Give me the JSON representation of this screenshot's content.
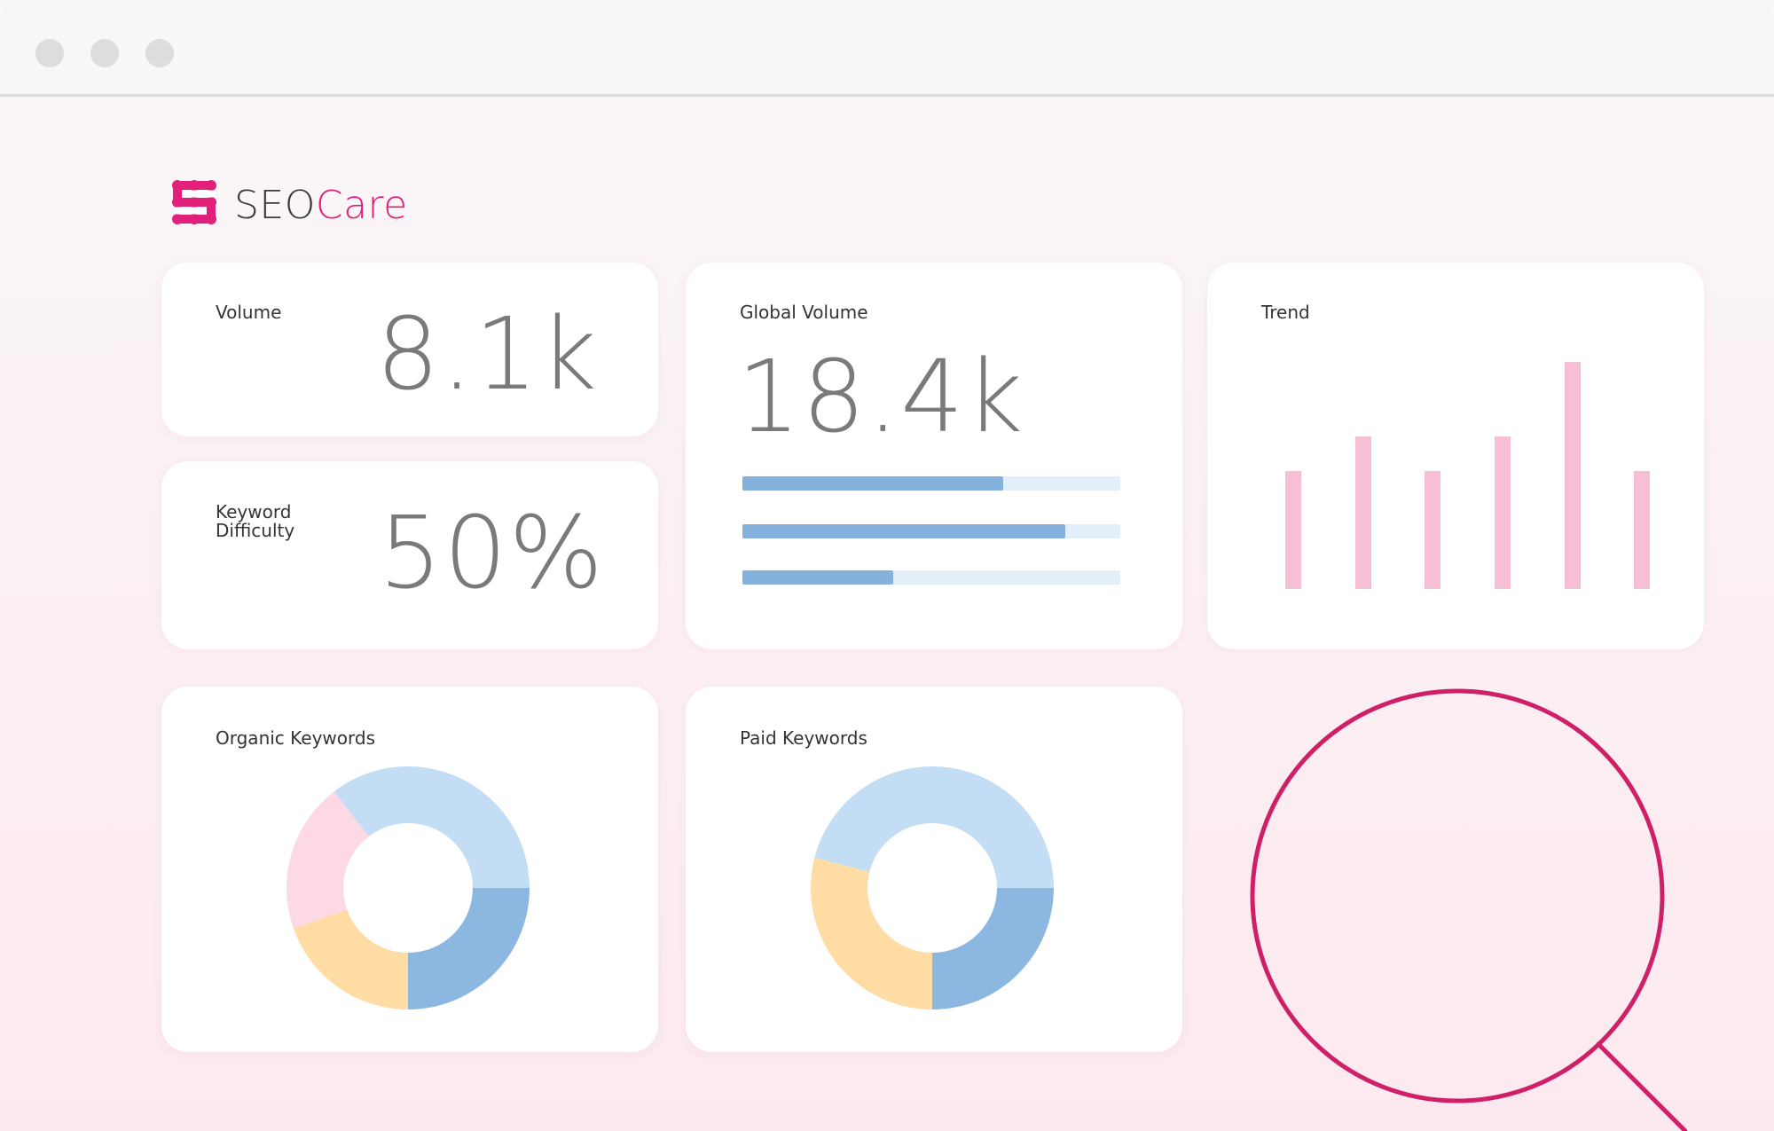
{
  "window": {
    "controls": [
      "close-dot",
      "minimize-dot",
      "maximize-dot"
    ]
  },
  "brand": {
    "name_part1": "SEO",
    "name_part2": "Care",
    "accent_color": "#e0207a",
    "icon": "seocare-logo-icon"
  },
  "cards": {
    "volume": {
      "label": "Volume",
      "value": "8.1k"
    },
    "keyword_difficulty": {
      "label_line1": "Keyword",
      "label_line2": "Difficulty",
      "value": "50%"
    },
    "global_volume": {
      "label": "Global Volume",
      "value": "18.4k",
      "bars": [
        0.69,
        0.855,
        0.4
      ]
    },
    "trend": {
      "label": "Trend",
      "bars": [
        0.52,
        0.67,
        0.52,
        0.67,
        1.0,
        0.52
      ]
    },
    "organic_keywords": {
      "label": "Organic Keywords",
      "segments": [
        {
          "color": "#8bb7e0",
          "fraction": 0.25
        },
        {
          "color": "#fedca4",
          "fraction": 0.196
        },
        {
          "color": "#fdd8e5",
          "fraction": 0.2
        },
        {
          "color": "#c3ddf4",
          "fraction": 0.354
        }
      ]
    },
    "paid_keywords": {
      "label": "Paid Keywords",
      "segments": [
        {
          "color": "#8bb7e0",
          "fraction": 0.25
        },
        {
          "color": "#fedca4",
          "fraction": 0.29
        },
        {
          "color": "#c3ddf4",
          "fraction": 0.46
        }
      ]
    }
  },
  "decor": {
    "magnifier_icon": "magnifying-glass-icon",
    "magnifier_color": "#cf1f67"
  }
}
